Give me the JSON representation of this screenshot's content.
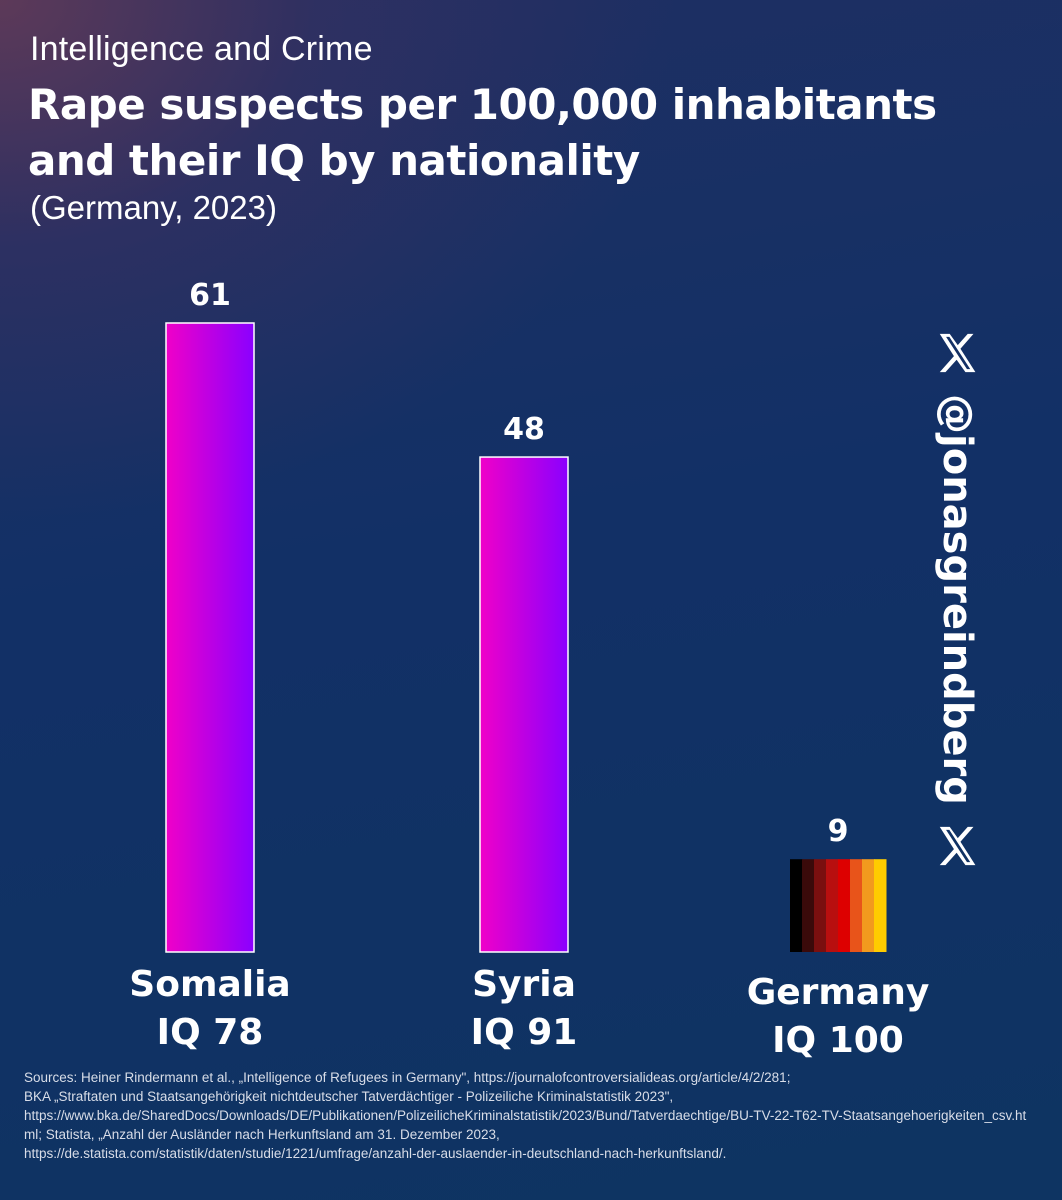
{
  "header": {
    "supertitle": "Intelligence and Crime",
    "title": "Rape suspects per 100,000 inhabitants and their IQ by nationality",
    "subtitle": "(Germany, 2023)"
  },
  "chart_data": {
    "type": "bar",
    "title": "Rape suspects per 100,000 inhabitants and their IQ by nationality",
    "subtitle": "(Germany, 2023)",
    "categories": [
      "Somalia",
      "Syria",
      "Germany"
    ],
    "iq_labels": [
      "IQ 78",
      "IQ 91",
      "IQ 100"
    ],
    "values": [
      61,
      48,
      9
    ],
    "value_labels": [
      "61",
      "48",
      "9"
    ],
    "ylim": [
      0,
      61
    ],
    "xlabel": "",
    "ylabel": "",
    "grid": false,
    "colors": {
      "bar_gradient_start": "#f000c8",
      "bar_gradient_end": "#8a00ff",
      "bar_border": "#ffffff",
      "flag_stripes": [
        "#000000",
        "#3a0a0a",
        "#7a0f0f",
        "#b80f0f",
        "#dd0000",
        "#e8541a",
        "#f29a1e",
        "#ffcc00"
      ]
    }
  },
  "watermark": {
    "handle": "@jonasgreindberg",
    "icon": "x-logo-icon"
  },
  "sources": {
    "lines": [
      "Sources: Heiner Rindermann et al., „Intelligence of Refugees in Germany\", https://journalofcontroversialideas.org/article/4/2/281;",
      "BKA „Straftaten und Staatsangehörigkeit nichtdeutscher Tatverdächtiger - Polizeiliche Kriminalstatistik 2023\",",
      "https://www.bka.de/SharedDocs/Downloads/DE/Publikationen/PolizeilicheKriminalstatistik/2023/Bund/Tatverdaechtige/BU-TV-22-T62-TV-Staatsangehoerigkeiten_csv.html; Statista, „Anzahl der Ausländer nach Herkunftsland am 31. Dezember 2023,",
      "https://de.statista.com/statistik/daten/studie/1221/umfrage/anzahl-der-auslaender-in-deutschland-nach-herkunftsland/."
    ]
  }
}
